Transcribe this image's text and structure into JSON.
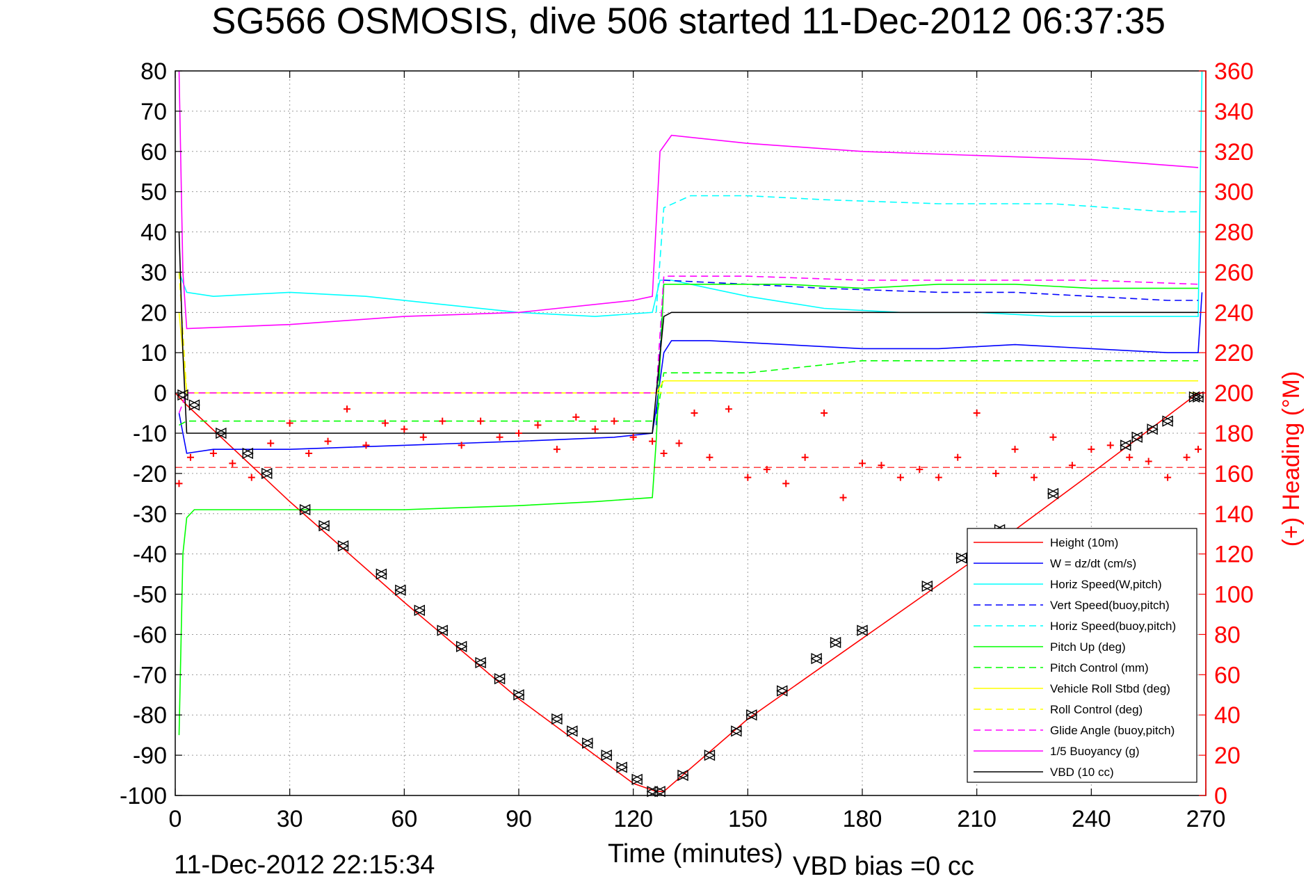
{
  "chart_data": {
    "type": "line",
    "title": "SG566 OSMOSIS, dive 506 started 11-Dec-2012 06:37:35",
    "xlabel": "Time (minutes)",
    "ylabel_right": "(+) Heading (°M)",
    "timestamp": "11-Dec-2012 22:15:34",
    "vbd_bias": "VBD bias =0 cc",
    "xlim": [
      0,
      270
    ],
    "ylim_left": [
      -100,
      80
    ],
    "ylim_right": [
      0,
      360
    ],
    "grid": true,
    "legend_position": "bottom-right",
    "xticks": [
      0,
      30,
      60,
      90,
      120,
      150,
      180,
      210,
      240,
      270
    ],
    "xtick_labels": [
      "0",
      "30",
      "60",
      "90",
      "120",
      "150",
      "180",
      "210",
      "240",
      "270"
    ],
    "yticks_left": [
      80,
      70,
      60,
      50,
      40,
      30,
      20,
      10,
      0,
      -10,
      -20,
      -30,
      -40,
      -50,
      -60,
      -70,
      -80,
      -90,
      -100
    ],
    "ytick_labels_left": [
      "80",
      "70",
      "60",
      "50",
      "40",
      "30",
      "20",
      "10",
      "0",
      "-10",
      "-20",
      "-30",
      "-40",
      "-50",
      "-60",
      "-70",
      "-80",
      "-90",
      "-100"
    ],
    "yticks_right": [
      360,
      340,
      320,
      300,
      280,
      260,
      240,
      220,
      200,
      180,
      160,
      140,
      120,
      100,
      80,
      60,
      40,
      20,
      0
    ],
    "ytick_labels_right": [
      "360",
      "340",
      "320",
      "300",
      "280",
      "260",
      "240",
      "220",
      "200",
      "180",
      "160",
      "140",
      "120",
      "100",
      "80",
      "60",
      "40",
      "20",
      "0"
    ],
    "colors": {
      "height": "#ff0000",
      "w": "#0000ff",
      "horiz_speed": "#00ffff",
      "pitch": "#00ff00",
      "roll": "#ffff00",
      "buoyancy": "#ff00ff",
      "vbd": "#000000",
      "heading": "#ff0000",
      "right_axis": "#ff0000"
    },
    "series": [
      {
        "name": "Height (10m)",
        "axis": "left",
        "style": "solid",
        "color": "#ff0000",
        "x": [
          0,
          3,
          30,
          60,
          90,
          120,
          126,
          128,
          150,
          180,
          210,
          240,
          268,
          270
        ],
        "y": [
          0,
          -3,
          -27,
          -52,
          -76,
          -97,
          -99,
          -99,
          -81,
          -61,
          -41,
          -20,
          0,
          0
        ]
      },
      {
        "name": "W = dz/dt (cm/s)",
        "axis": "left",
        "style": "solid",
        "color": "#0000ff",
        "x": [
          1,
          3,
          10,
          30,
          60,
          90,
          115,
          125,
          126,
          128,
          130,
          140,
          160,
          180,
          200,
          220,
          240,
          260,
          268,
          269
        ],
        "y": [
          -5,
          -15,
          -14,
          -14,
          -13,
          -12,
          -11,
          -10,
          -4,
          10,
          13,
          13,
          12,
          11,
          11,
          12,
          11,
          10,
          10,
          25
        ]
      },
      {
        "name": "Horiz Speed(W,pitch)",
        "axis": "left",
        "style": "solid",
        "color": "#00ffff",
        "x": [
          1,
          3,
          10,
          30,
          50,
          70,
          90,
          110,
          125,
          127,
          130,
          150,
          170,
          190,
          210,
          230,
          250,
          268,
          269
        ],
        "y": [
          30,
          25,
          24,
          25,
          24,
          22,
          20,
          19,
          20,
          28,
          28,
          24,
          21,
          20,
          20,
          19,
          19,
          19,
          80
        ]
      },
      {
        "name": "Vert Speed(buoy,pitch)",
        "axis": "left",
        "style": "dashed",
        "color": "#0000ff",
        "x": [
          126,
          128,
          150,
          170,
          200,
          220,
          240,
          260,
          268
        ],
        "y": [
          -8,
          28,
          27,
          26,
          25,
          25,
          24,
          23,
          23
        ]
      },
      {
        "name": "Horiz Speed(buoy,pitch)",
        "axis": "left",
        "style": "dashed",
        "color": "#00ffff",
        "x": [
          126,
          128,
          135,
          150,
          170,
          200,
          230,
          260,
          268
        ],
        "y": [
          20,
          46,
          49,
          49,
          48,
          47,
          47,
          45,
          45
        ]
      },
      {
        "name": "Pitch Up (deg)",
        "axis": "left",
        "style": "solid",
        "color": "#00ff00",
        "x": [
          1,
          2,
          3,
          5,
          30,
          60,
          90,
          110,
          125,
          126,
          128,
          140,
          160,
          180,
          200,
          220,
          240,
          260,
          268
        ],
        "y": [
          -85,
          -40,
          -31,
          -29,
          -29,
          -29,
          -28,
          -27,
          -26,
          -12,
          27,
          27,
          27,
          26,
          27,
          27,
          26,
          26,
          26
        ]
      },
      {
        "name": "Pitch Control (mm)",
        "axis": "left",
        "style": "dashed",
        "color": "#00ff00",
        "x": [
          1,
          3,
          30,
          60,
          90,
          120,
          126,
          128,
          150,
          180,
          210,
          240,
          268
        ],
        "y": [
          -8,
          -7,
          -7,
          -7,
          -7,
          -7,
          -7,
          5,
          5,
          8,
          8,
          8,
          8
        ]
      },
      {
        "name": "Vehicle Roll Stbd (deg)",
        "axis": "left",
        "style": "solid",
        "color": "#ffff00",
        "x": [
          1,
          3,
          30,
          60,
          90,
          120,
          126,
          128,
          150,
          180,
          210,
          240,
          268
        ],
        "y": [
          20,
          0,
          0,
          0,
          0,
          0,
          0,
          3,
          3,
          3,
          3,
          3,
          3
        ]
      },
      {
        "name": "Roll Control (deg)",
        "axis": "left",
        "style": "dashed",
        "color": "#ffff00",
        "x": [
          1,
          3,
          30,
          60,
          90,
          120,
          126,
          128,
          150,
          180,
          210,
          240,
          268
        ],
        "y": [
          30,
          0,
          0,
          0,
          0,
          0,
          0,
          0,
          0,
          0,
          0,
          0,
          0
        ]
      },
      {
        "name": "Glide Angle (buoy,pitch)",
        "axis": "left",
        "style": "dashed",
        "color": "#ff00ff",
        "x": [
          1,
          3,
          30,
          60,
          90,
          120,
          126,
          128,
          150,
          180,
          210,
          240,
          268
        ],
        "y": [
          -5,
          0,
          0,
          0,
          0,
          0,
          0,
          29,
          29,
          28,
          28,
          28,
          27
        ]
      },
      {
        "name": "1/5 Buoyancy (g)",
        "axis": "left",
        "style": "solid",
        "color": "#ff00ff",
        "x": [
          1,
          2,
          3,
          30,
          60,
          90,
          120,
          125,
          127,
          130,
          150,
          180,
          210,
          240,
          268
        ],
        "y": [
          80,
          30,
          16,
          17,
          19,
          20,
          23,
          24,
          60,
          64,
          62,
          60,
          59,
          58,
          56
        ]
      },
      {
        "name": "VBD (10 cc)",
        "axis": "left",
        "style": "solid",
        "color": "#000000",
        "x": [
          1,
          2,
          3,
          30,
          60,
          90,
          120,
          125,
          128,
          130,
          160,
          200,
          240,
          268
        ],
        "y": [
          40,
          10,
          -10,
          -10,
          -10,
          -10,
          -10,
          -10,
          19,
          20,
          20,
          20,
          20,
          20
        ]
      }
    ],
    "heading": {
      "name": "Heading",
      "axis": "right",
      "marker": "+",
      "color": "#ff0000",
      "x": [
        1,
        4,
        10,
        15,
        20,
        25,
        30,
        35,
        40,
        45,
        50,
        55,
        60,
        65,
        70,
        75,
        80,
        85,
        90,
        95,
        100,
        105,
        110,
        115,
        120,
        125,
        128,
        132,
        136,
        140,
        145,
        150,
        155,
        160,
        165,
        170,
        175,
        180,
        185,
        190,
        195,
        200,
        205,
        210,
        215,
        220,
        225,
        230,
        235,
        240,
        245,
        250,
        255,
        260,
        265,
        268
      ],
      "y": [
        155,
        168,
        170,
        165,
        158,
        175,
        185,
        170,
        176,
        192,
        174,
        185,
        182,
        178,
        186,
        174,
        186,
        178,
        180,
        184,
        172,
        188,
        182,
        186,
        178,
        176,
        170,
        175,
        190,
        168,
        192,
        158,
        162,
        155,
        168,
        190,
        148,
        165,
        164,
        158,
        162,
        158,
        168,
        190,
        160,
        172,
        158,
        178,
        164,
        172,
        174,
        168,
        166,
        158,
        168,
        172
      ]
    },
    "triangle_markers": {
      "x": [
        2,
        5,
        12,
        19,
        24,
        34,
        39,
        44,
        54,
        59,
        64,
        70,
        75,
        80,
        85,
        90,
        100,
        104,
        108,
        113,
        117,
        121,
        125,
        127,
        133,
        140,
        147,
        151,
        159,
        168,
        173,
        180,
        197,
        206,
        216,
        230,
        249,
        252,
        256,
        260,
        267,
        268
      ],
      "y": [
        -0.5,
        -3,
        -10,
        -15,
        -20,
        -29,
        -33,
        -38,
        -45,
        -49,
        -54,
        -59,
        -63,
        -67,
        -71,
        -75,
        -81,
        -84,
        -87,
        -90,
        -93,
        -96,
        -99,
        -99,
        -95,
        -90,
        -84,
        -80,
        -74,
        -66,
        -62,
        -59,
        -48,
        -41,
        -34,
        -25,
        -13,
        -11,
        -9,
        -7,
        -1,
        -1
      ]
    },
    "avg_heading": 163
  }
}
